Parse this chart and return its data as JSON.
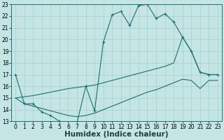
{
  "xlabel": "Humidex (Indice chaleur)",
  "x": [
    0,
    1,
    2,
    3,
    4,
    5,
    6,
    7,
    8,
    9,
    10,
    11,
    12,
    13,
    14,
    15,
    16,
    17,
    18,
    19,
    20,
    21,
    22,
    23
  ],
  "line_top": [
    17,
    14.5,
    null,
    null,
    null,
    null,
    null,
    null,
    null,
    null,
    19.8,
    22.1,
    22.4,
    21.2,
    22.9,
    23.0,
    21.8,
    22.2,
    21.5,
    20.2,
    null,
    null,
    null,
    null
  ],
  "line_jagged": [
    17,
    14.5,
    14.5,
    13.8,
    13.5,
    13.0,
    12.9,
    12.9,
    16.0,
    13.9,
    19.8,
    22.1,
    22.4,
    21.2,
    22.9,
    23.0,
    21.8,
    22.2,
    21.5,
    20.2,
    19.0,
    17.2,
    17.0,
    17.0
  ],
  "line_upper_linear": [
    15.0,
    15.1,
    15.2,
    15.35,
    15.5,
    15.65,
    15.8,
    15.9,
    16.0,
    16.1,
    16.3,
    16.5,
    16.7,
    16.9,
    17.1,
    17.3,
    17.5,
    17.7,
    18.0,
    20.2,
    19.0,
    17.2,
    17.0,
    17.0
  ],
  "line_lower_linear": [
    15.0,
    14.5,
    14.3,
    14.1,
    13.9,
    13.7,
    13.5,
    13.4,
    13.5,
    13.7,
    14.0,
    14.3,
    14.6,
    14.9,
    15.2,
    15.5,
    15.7,
    16.0,
    16.3,
    16.6,
    16.5,
    15.8,
    16.5,
    16.5
  ],
  "ylim": [
    13,
    23
  ],
  "yticks": [
    13,
    14,
    15,
    16,
    17,
    18,
    19,
    20,
    21,
    22,
    23
  ],
  "bg_color": "#c5e5e5",
  "grid_color": "#a8cccc",
  "line_color": "#1a7070",
  "tick_fontsize": 5.5,
  "label_fontsize": 7.5
}
